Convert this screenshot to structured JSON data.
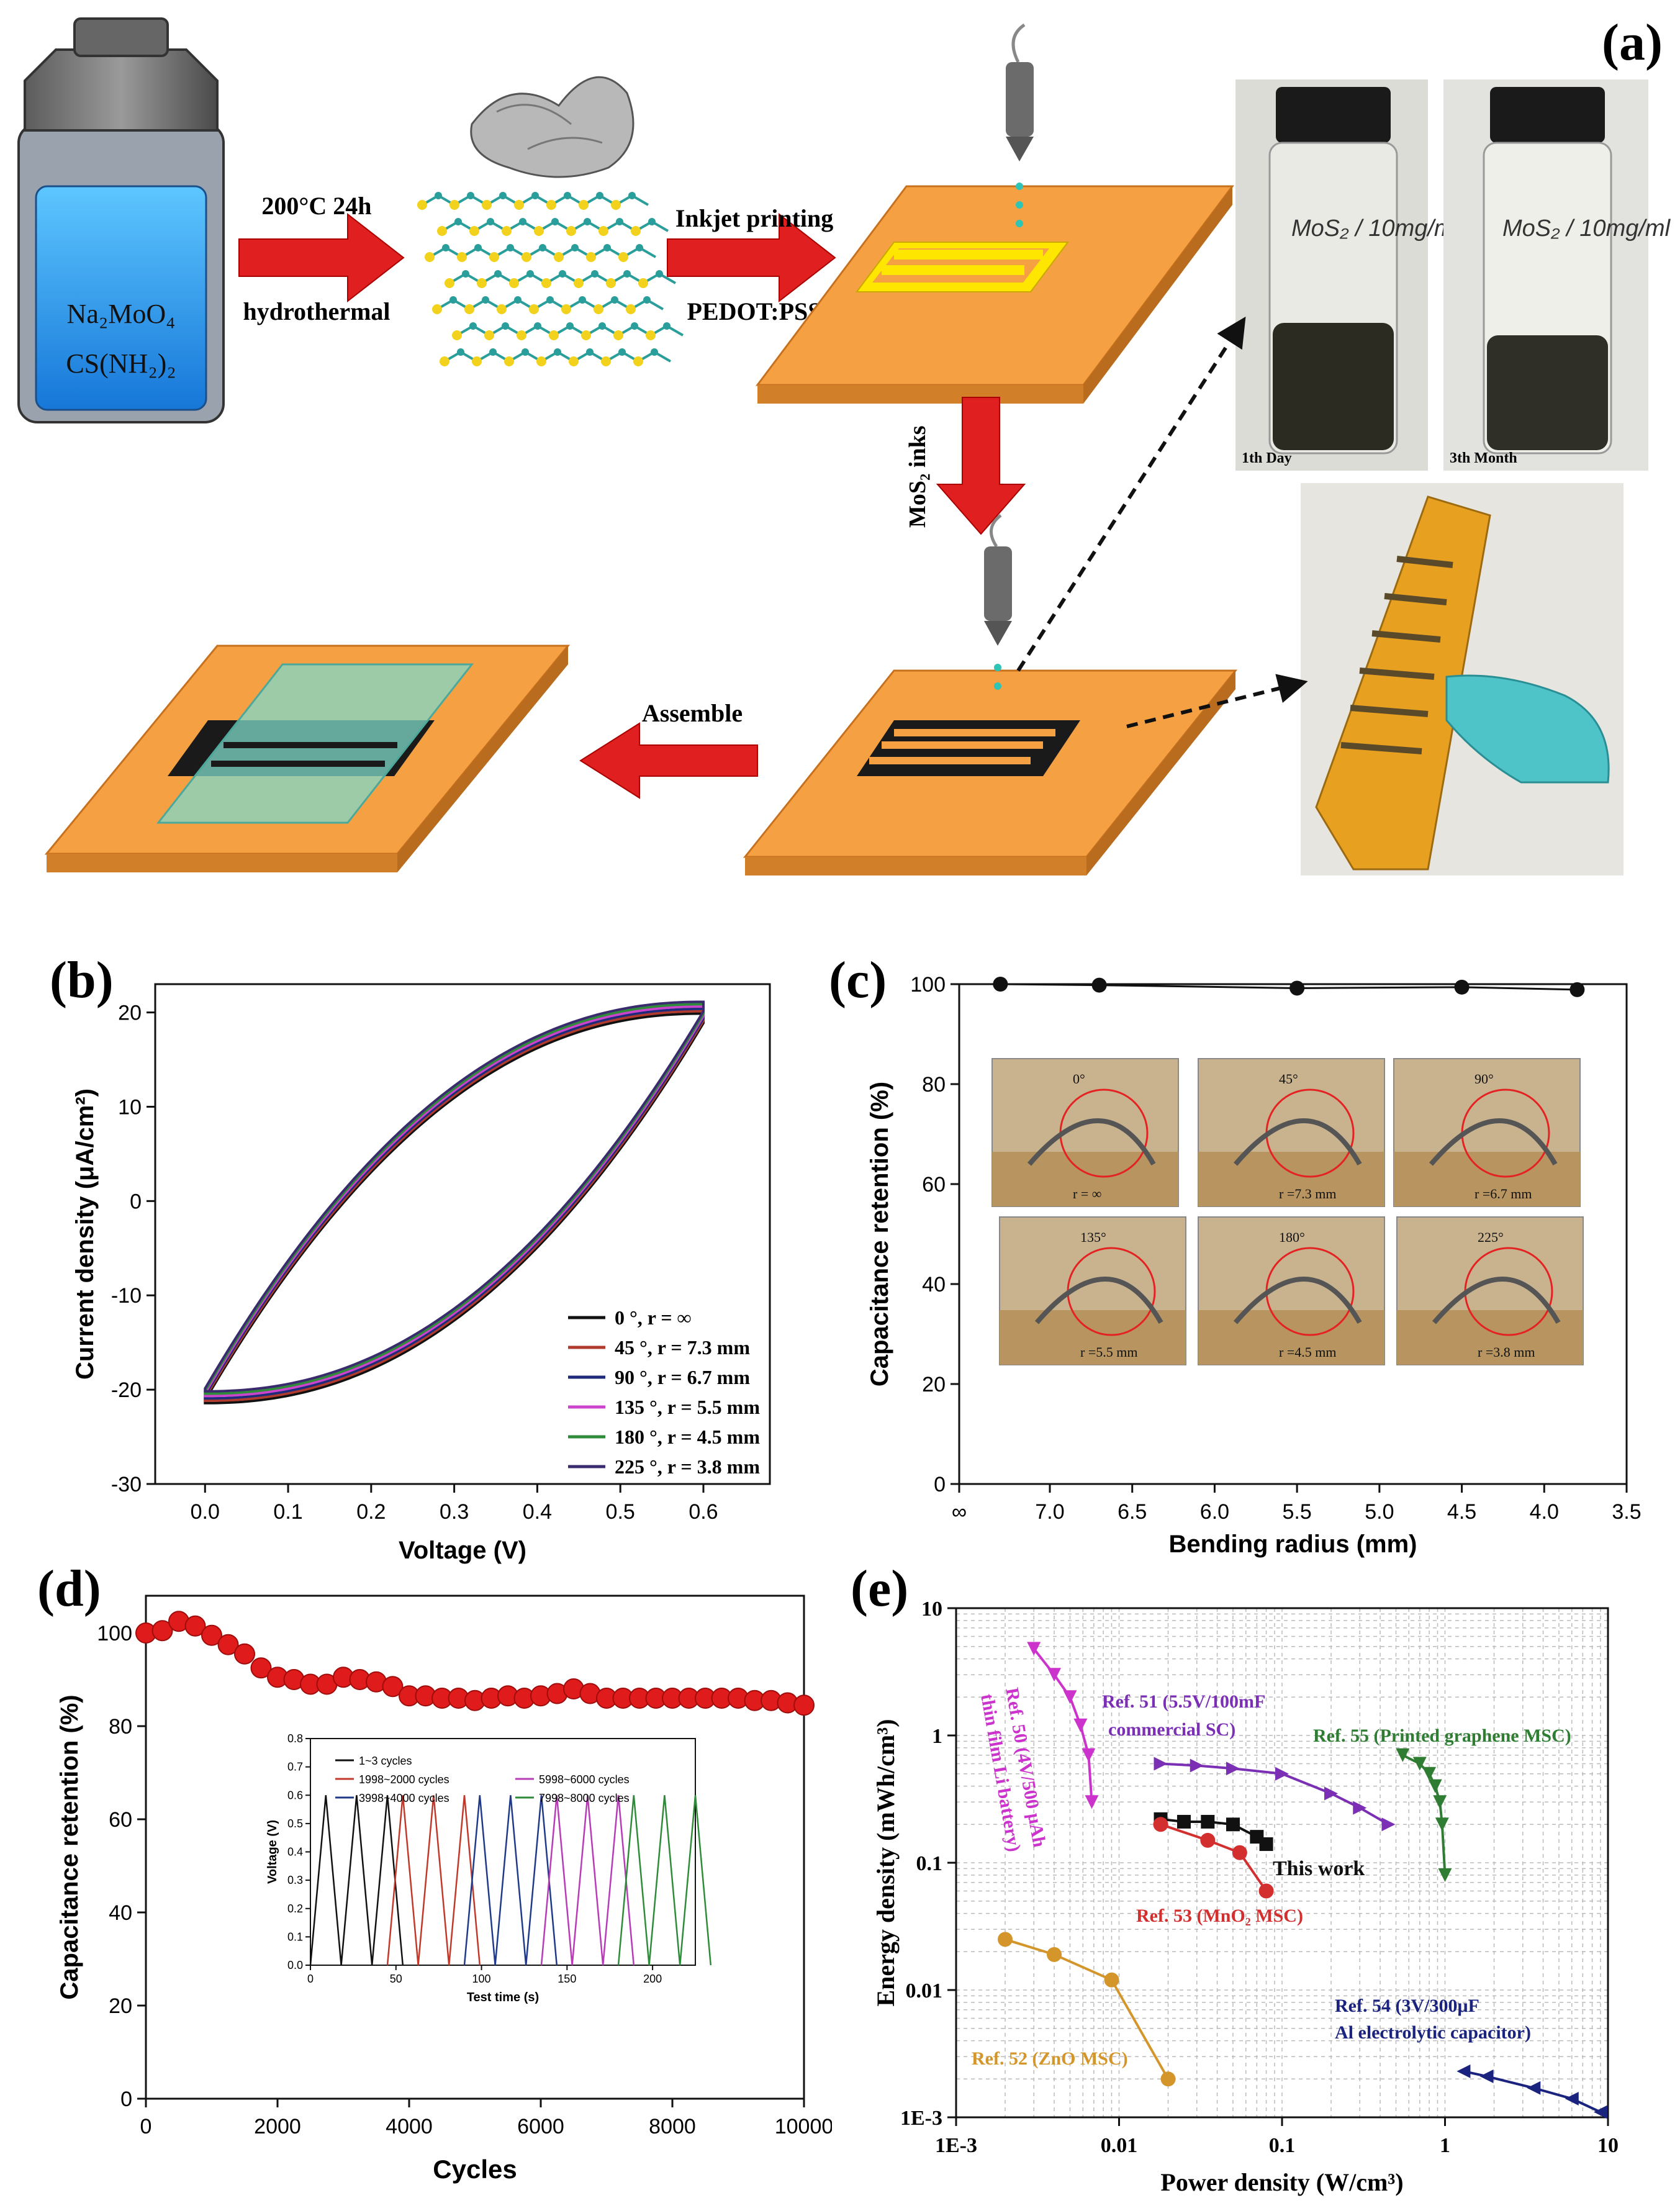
{
  "panel_a": {
    "label": "(a)",
    "reactants": [
      "Na₂MoO₄",
      "CS(NH₂)₂"
    ],
    "step1": {
      "line1": "200°C  24h",
      "line2": "hydrothermal"
    },
    "step2": {
      "line1": "Inkjet printing",
      "line2": "PEDOT:PSS"
    },
    "step3": "MoS₂ inks",
    "step4": "Assemble",
    "photo1_label": "1th Day",
    "photo2_label": "3th Month",
    "vial_text": "MoS₂ / 10mg/ml"
  },
  "chart_data": [
    {
      "id": "b",
      "type": "line",
      "label": "(b)",
      "xlabel": "Voltage (V)",
      "ylabel": "Current density (μA/cm²)",
      "xlim": [
        -0.06,
        0.68
      ],
      "ylim": [
        -30,
        23
      ],
      "xticks": [
        "0.0",
        "0.1",
        "0.2",
        "0.3",
        "0.4",
        "0.5",
        "0.6"
      ],
      "yticks": [
        "-30",
        "-20",
        "-10",
        "0",
        "10",
        "20"
      ],
      "legend_position": "bottom-right",
      "series": [
        {
          "name": "0 °, r = ∞",
          "color": "#111111"
        },
        {
          "name": "45 °, r = 7.3 mm",
          "color": "#b03a2e"
        },
        {
          "name": "90 °, r = 6.7 mm",
          "color": "#1f2a7a"
        },
        {
          "name": "135 °, r = 5.5 mm",
          "color": "#cc44cc"
        },
        {
          "name": "180 °, r = 4.5 mm",
          "color": "#2e8b3a"
        },
        {
          "name": "225 °, r = 3.8 mm",
          "color": "#3a2a6e"
        }
      ],
      "cv_loop": {
        "v_min": 0.0,
        "v_max": 0.6,
        "upper_start": -20.5,
        "upper_end": 20.5,
        "lower_start": -20.8,
        "lower_end": 19.5
      }
    },
    {
      "id": "c",
      "type": "line",
      "label": "(c)",
      "xlabel": "Bending radius (mm)",
      "ylabel": "Capacitance retention (%)",
      "xlim": [
        7.55,
        3.5
      ],
      "ylim": [
        0,
        100
      ],
      "xticks": [
        "∞",
        "7.0",
        "6.5",
        "6.0",
        "5.5",
        "5.0",
        "4.5",
        "4.0",
        "3.5"
      ],
      "yticks": [
        "0",
        "20",
        "40",
        "60",
        "80",
        "100"
      ],
      "x": [
        7.3,
        6.7,
        5.5,
        4.5,
        3.8
      ],
      "y": [
        100.0,
        99.8,
        99.2,
        99.4,
        98.9
      ],
      "inset_labels": [
        {
          "angle": "0°",
          "radius": "r = ∞"
        },
        {
          "angle": "45°",
          "radius": "r =7.3 mm"
        },
        {
          "angle": "90°",
          "radius": "r =6.7 mm"
        },
        {
          "angle": "135°",
          "radius": "r =5.5 mm"
        },
        {
          "angle": "180°",
          "radius": "r =4.5 mm"
        },
        {
          "angle": "225°",
          "radius": "r =3.8 mm"
        }
      ]
    },
    {
      "id": "d",
      "type": "line",
      "label": "(d)",
      "xlabel": "Cycles",
      "ylabel": "Capacitance retention (%)",
      "xlim": [
        0,
        10000
      ],
      "ylim": [
        0,
        108
      ],
      "xticks": [
        "0",
        "2000",
        "4000",
        "6000",
        "8000",
        "10000"
      ],
      "yticks": [
        "0",
        "20",
        "40",
        "60",
        "80",
        "100"
      ],
      "x": [
        0,
        250,
        500,
        750,
        1000,
        1250,
        1500,
        1750,
        2000,
        2250,
        2500,
        2750,
        3000,
        3250,
        3500,
        3750,
        4000,
        4250,
        4500,
        4750,
        5000,
        5250,
        5500,
        5750,
        6000,
        6250,
        6500,
        6750,
        7000,
        7250,
        7500,
        7750,
        8000,
        8250,
        8500,
        8750,
        9000,
        9250,
        9500,
        9750,
        10000
      ],
      "y": [
        100,
        100.5,
        102.5,
        101.5,
        99.5,
        97.5,
        95.5,
        92.5,
        90.5,
        90,
        89,
        89,
        90.5,
        90,
        89.5,
        88.5,
        86.5,
        86.5,
        86,
        86,
        85.5,
        86,
        86.5,
        86,
        86.5,
        87,
        88,
        87,
        86,
        86,
        86,
        86,
        86,
        86,
        86,
        86,
        86,
        85.5,
        85.5,
        85,
        84.5
      ],
      "inset": {
        "xlabel": "Test time (s)",
        "ylabel": "Voltage (V)",
        "xlim": [
          0,
          225
        ],
        "ylim": [
          0,
          0.8
        ],
        "xticks": [
          "0",
          "50",
          "100",
          "150",
          "200"
        ],
        "yticks": [
          "0.0",
          "0.1",
          "0.2",
          "0.3",
          "0.4",
          "0.5",
          "0.6",
          "0.7",
          "0.8"
        ],
        "peak_v": 0.6,
        "half_period_s": 9,
        "series": [
          {
            "name": "1~3 cycles",
            "color": "#111111"
          },
          {
            "name": "1998~2000 cycles",
            "color": "#c0392b"
          },
          {
            "name": "3998~4000 cycles",
            "color": "#1f3a8a"
          },
          {
            "name": "5998~6000 cycles",
            "color": "#b83bb8"
          },
          {
            "name": "7998~8000 cycles",
            "color": "#2e8b3a"
          }
        ]
      }
    },
    {
      "id": "e",
      "type": "scatter",
      "label": "(e)",
      "xlabel": "Power density (W/cm³)",
      "ylabel": "Energy density (mWh/cm³)",
      "xscale": "log",
      "yscale": "log",
      "xlim": [
        0.001,
        10
      ],
      "ylim": [
        0.001,
        10
      ],
      "xticks": [
        "1E-3",
        "0.01",
        "0.1",
        "1",
        "10"
      ],
      "yticks": [
        "1E-3",
        "0.01",
        "0.1",
        "1",
        "10"
      ],
      "series": [
        {
          "name": "This work",
          "color": "#111111",
          "marker": "square",
          "x": [
            0.018,
            0.025,
            0.035,
            0.05,
            0.07,
            0.08
          ],
          "y": [
            0.22,
            0.21,
            0.21,
            0.2,
            0.16,
            0.14
          ]
        },
        {
          "name": "Ref. 50 (4V/500 μAh thin film Li battery)",
          "color": "#cc33cc",
          "marker": "triangle-down",
          "x": [
            0.003,
            0.004,
            0.005,
            0.0058,
            0.0065,
            0.0068
          ],
          "y": [
            4.8,
            3.0,
            2.0,
            1.2,
            0.7,
            0.3
          ]
        },
        {
          "name": "Ref. 51 (5.5V/100mF commercial SC)",
          "color": "#7a2fb5",
          "marker": "triangle-right",
          "x": [
            0.018,
            0.03,
            0.05,
            0.1,
            0.2,
            0.3,
            0.45
          ],
          "y": [
            0.6,
            0.58,
            0.55,
            0.5,
            0.35,
            0.27,
            0.2
          ]
        },
        {
          "name": "Ref. 52 (ZnO MSC)",
          "color": "#d4962a",
          "marker": "circle",
          "x": [
            0.002,
            0.004,
            0.009,
            0.02
          ],
          "y": [
            0.025,
            0.019,
            0.012,
            0.002
          ]
        },
        {
          "name": "Ref. 53 (MnO₂ MSC)",
          "color": "#d32f2f",
          "marker": "circle",
          "x": [
            0.018,
            0.035,
            0.055,
            0.08
          ],
          "y": [
            0.2,
            0.15,
            0.12,
            0.06
          ]
        },
        {
          "name": "Ref. 54 (3V/300μF Al electrolytic capacitor)",
          "color": "#1a237e",
          "marker": "triangle-left",
          "x": [
            1.3,
            1.8,
            3.5,
            6,
            9
          ],
          "y": [
            0.0023,
            0.0021,
            0.0017,
            0.0014,
            0.0011
          ]
        },
        {
          "name": "Ref. 55 (Printed graphene MSC)",
          "color": "#2e7d32",
          "marker": "triangle-down",
          "x": [
            0.55,
            0.7,
            0.8,
            0.87,
            0.93,
            0.96,
            1.0
          ],
          "y": [
            0.7,
            0.6,
            0.5,
            0.4,
            0.3,
            0.2,
            0.08
          ]
        }
      ],
      "annotations": {
        "this_work": "This work",
        "ref50": [
          "Ref. 50  (4V/500 μAh",
          "thin film Li battery)"
        ],
        "ref51": [
          "Ref. 51 (5.5V/100mF",
          "commercial SC)"
        ],
        "ref52": "Ref. 52 (ZnO MSC)",
        "ref53": "Ref. 53 (MnO₂ MSC)",
        "ref54": [
          "Ref. 54 (3V/300μF",
          "Al electrolytic capacitor)"
        ],
        "ref55": "Ref. 55 (Printed graphene MSC)"
      }
    }
  ]
}
